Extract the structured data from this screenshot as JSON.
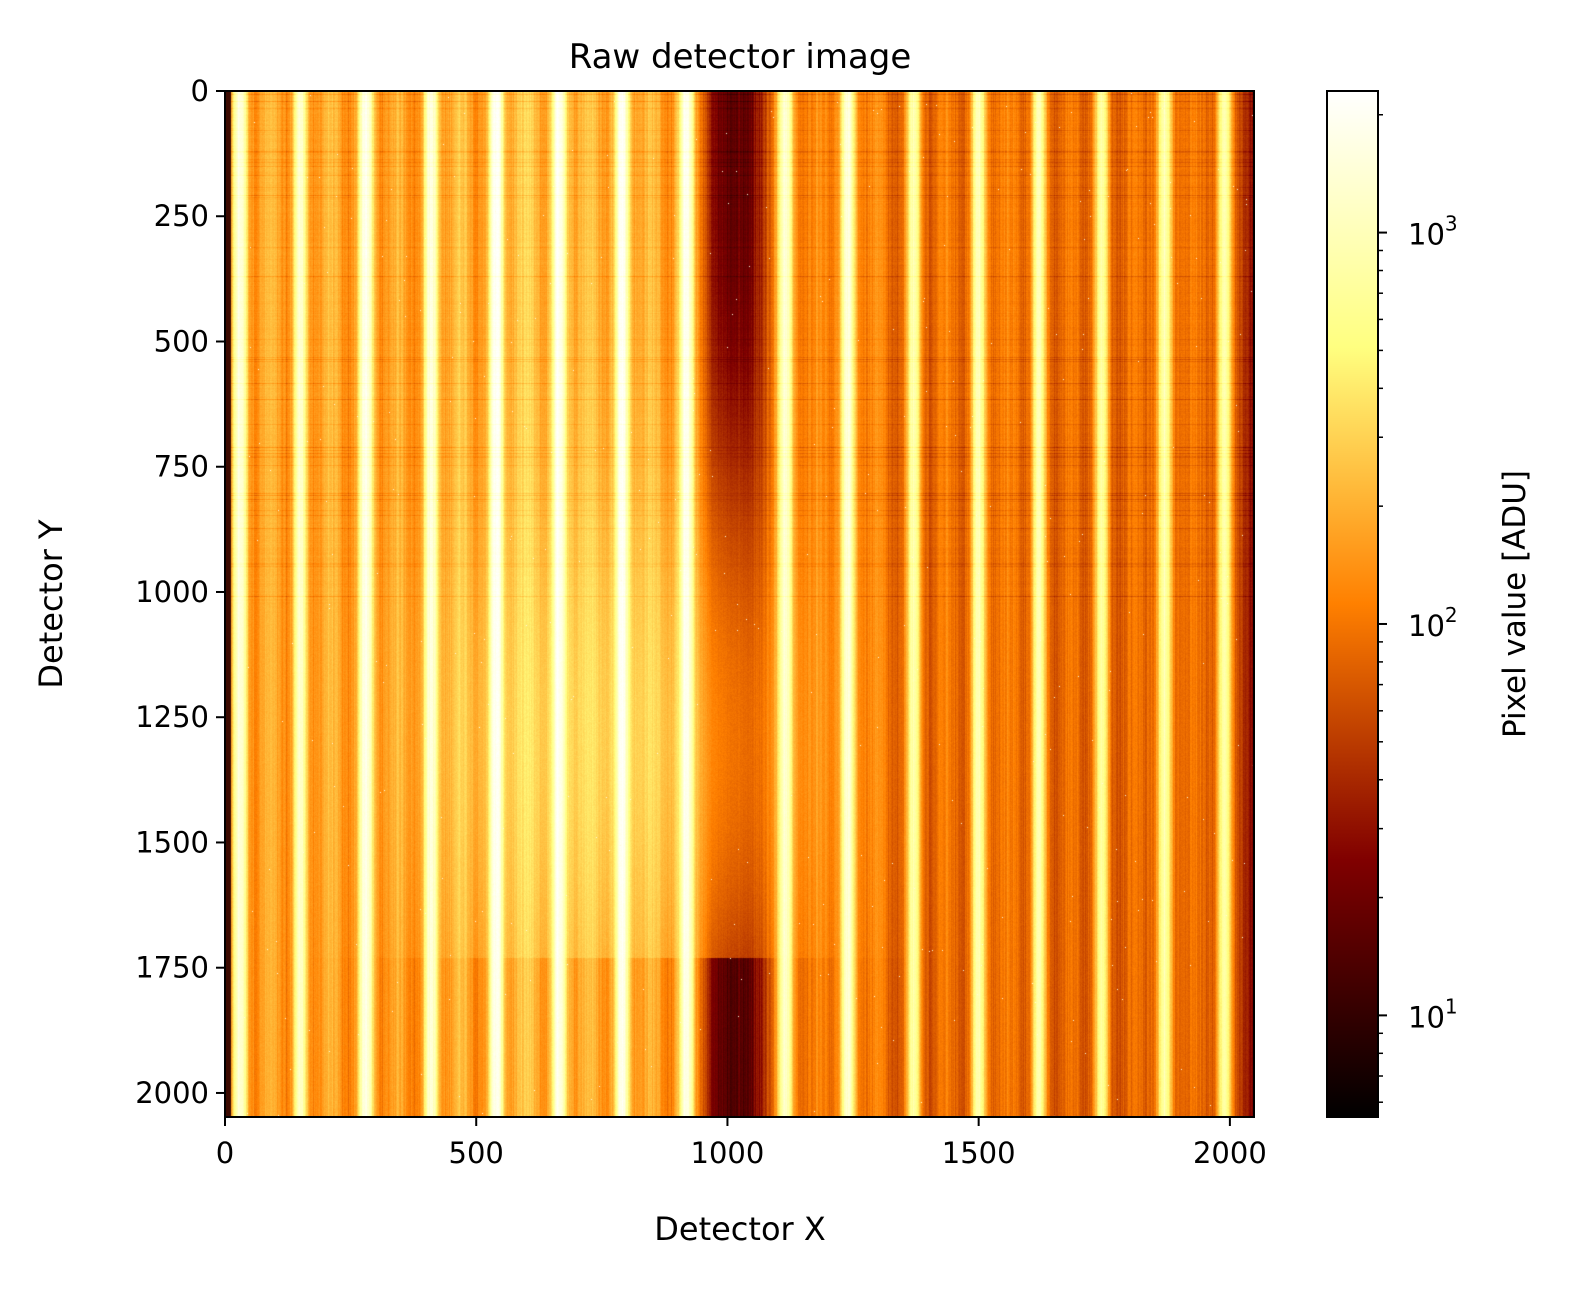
{
  "chart_data": {
    "type": "heatmap",
    "title": "Raw detector image",
    "xlabel": "Detector X",
    "ylabel": "Detector Y",
    "xlim": [
      0,
      2048
    ],
    "ylim": [
      2048,
      0
    ],
    "x_ticks": [
      0,
      500,
      1000,
      1500,
      2000
    ],
    "y_ticks": [
      0,
      250,
      500,
      750,
      1000,
      1250,
      1500,
      1750,
      2000
    ],
    "x_tick_labels": [
      "0",
      "500",
      "1000",
      "1500",
      "2000"
    ],
    "y_tick_labels": [
      "0",
      "250",
      "500",
      "750",
      "1000",
      "1250",
      "1500",
      "1750",
      "2000"
    ],
    "colormap": "afmhot",
    "colorbar": {
      "label": "Pixel value [ADU]",
      "scale": "log",
      "range": [
        5.5,
        2300
      ],
      "ticks": [
        10,
        100,
        1000
      ],
      "tick_labels": [
        "10",
        "100",
        "1000"
      ],
      "tick_base": "10",
      "tick_exponents": [
        "1",
        "2",
        "3"
      ]
    },
    "background_level": 25,
    "bright_traces": [
      {
        "x": 30,
        "peak": 1500
      },
      {
        "x": 150,
        "peak": 1200
      },
      {
        "x": 280,
        "peak": 1800
      },
      {
        "x": 410,
        "peak": 1500
      },
      {
        "x": 540,
        "peak": 2000
      },
      {
        "x": 665,
        "peak": 2000
      },
      {
        "x": 790,
        "peak": 2000
      },
      {
        "x": 918,
        "peak": 1800
      },
      {
        "x": 1115,
        "peak": 1300
      },
      {
        "x": 1240,
        "peak": 1300
      },
      {
        "x": 1370,
        "peak": 800
      },
      {
        "x": 1500,
        "peak": 900
      },
      {
        "x": 1620,
        "peak": 800
      },
      {
        "x": 1745,
        "peak": 700
      },
      {
        "x": 1870,
        "peak": 900
      },
      {
        "x": 1990,
        "peak": 800
      }
    ],
    "faint_traces": [
      {
        "x": 90,
        "peak": 200
      },
      {
        "x": 210,
        "peak": 220
      },
      {
        "x": 345,
        "peak": 200
      },
      {
        "x": 470,
        "peak": 260
      },
      {
        "x": 600,
        "peak": 300
      },
      {
        "x": 725,
        "peak": 250
      },
      {
        "x": 850,
        "peak": 220
      },
      {
        "x": 1180,
        "peak": 120
      },
      {
        "x": 1300,
        "peak": 110
      },
      {
        "x": 1435,
        "peak": 100
      },
      {
        "x": 1560,
        "peak": 100
      },
      {
        "x": 1685,
        "peak": 90
      },
      {
        "x": 1810,
        "peak": 90
      },
      {
        "x": 1930,
        "peak": 90
      }
    ],
    "diffuse_glow": {
      "x": 760,
      "y": 1300,
      "peak": 140
    },
    "dark_region": {
      "x_from": 930,
      "x_to": 1050,
      "level": 18
    }
  },
  "colors": {
    "axis": "#000000",
    "background": "#ffffff"
  }
}
